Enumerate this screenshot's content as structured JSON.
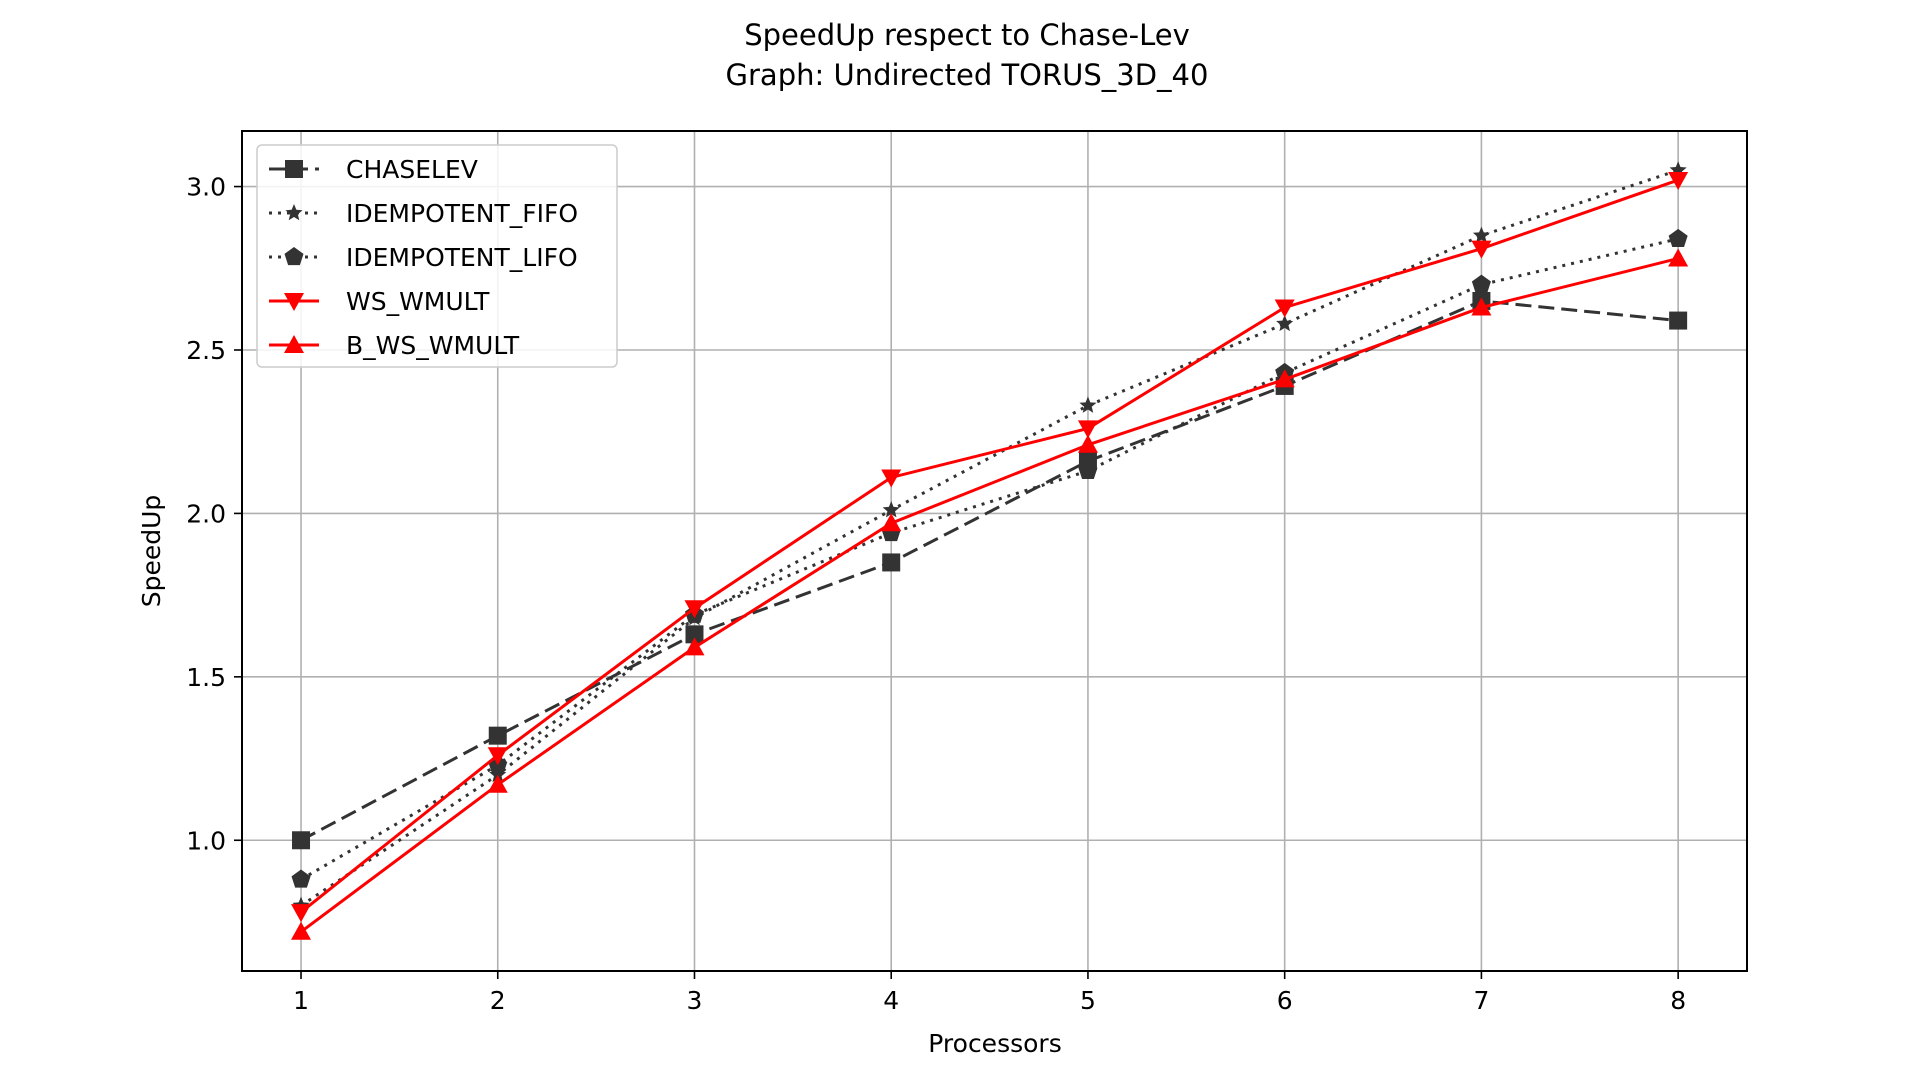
{
  "chart_data": {
    "type": "line",
    "title": "SpeedUp respect to Chase-Lev",
    "subtitle": "Graph: Undirected TORUS_3D_40",
    "xlabel": "Processors",
    "ylabel": "SpeedUp",
    "x": [
      1,
      2,
      3,
      4,
      5,
      6,
      7,
      8
    ],
    "xlim": [
      0.7,
      8.35
    ],
    "ylim": [
      0.6,
      3.17
    ],
    "xticks": [
      "1",
      "2",
      "3",
      "4",
      "5",
      "6",
      "7",
      "8"
    ],
    "yticks": [
      "1.0",
      "1.5",
      "2.0",
      "2.5",
      "3.0"
    ],
    "grid": true,
    "legend_position": "upper-left",
    "series": [
      {
        "name": "CHASELEV",
        "color": "#333333",
        "style": "dashed",
        "marker": "square",
        "values": [
          1.0,
          1.32,
          1.63,
          1.85,
          2.16,
          2.39,
          2.65,
          2.59
        ]
      },
      {
        "name": "IDEMPOTENT_FIFO",
        "color": "#333333",
        "style": "dotted",
        "marker": "star",
        "values": [
          0.8,
          1.2,
          1.68,
          2.01,
          2.33,
          2.58,
          2.85,
          3.05
        ]
      },
      {
        "name": "IDEMPOTENT_LIFO",
        "color": "#333333",
        "style": "dotted",
        "marker": "pentagon",
        "values": [
          0.88,
          1.23,
          1.69,
          1.94,
          2.13,
          2.43,
          2.7,
          2.84
        ]
      },
      {
        "name": "WS_WMULT",
        "color": "#ff0000",
        "style": "solid",
        "marker": "triangle-down",
        "values": [
          0.78,
          1.26,
          1.71,
          2.11,
          2.26,
          2.63,
          2.81,
          3.02
        ]
      },
      {
        "name": "B_WS_WMULT",
        "color": "#ff0000",
        "style": "solid",
        "marker": "triangle-up",
        "values": [
          0.72,
          1.17,
          1.59,
          1.97,
          2.21,
          2.41,
          2.63,
          2.78
        ]
      }
    ]
  }
}
